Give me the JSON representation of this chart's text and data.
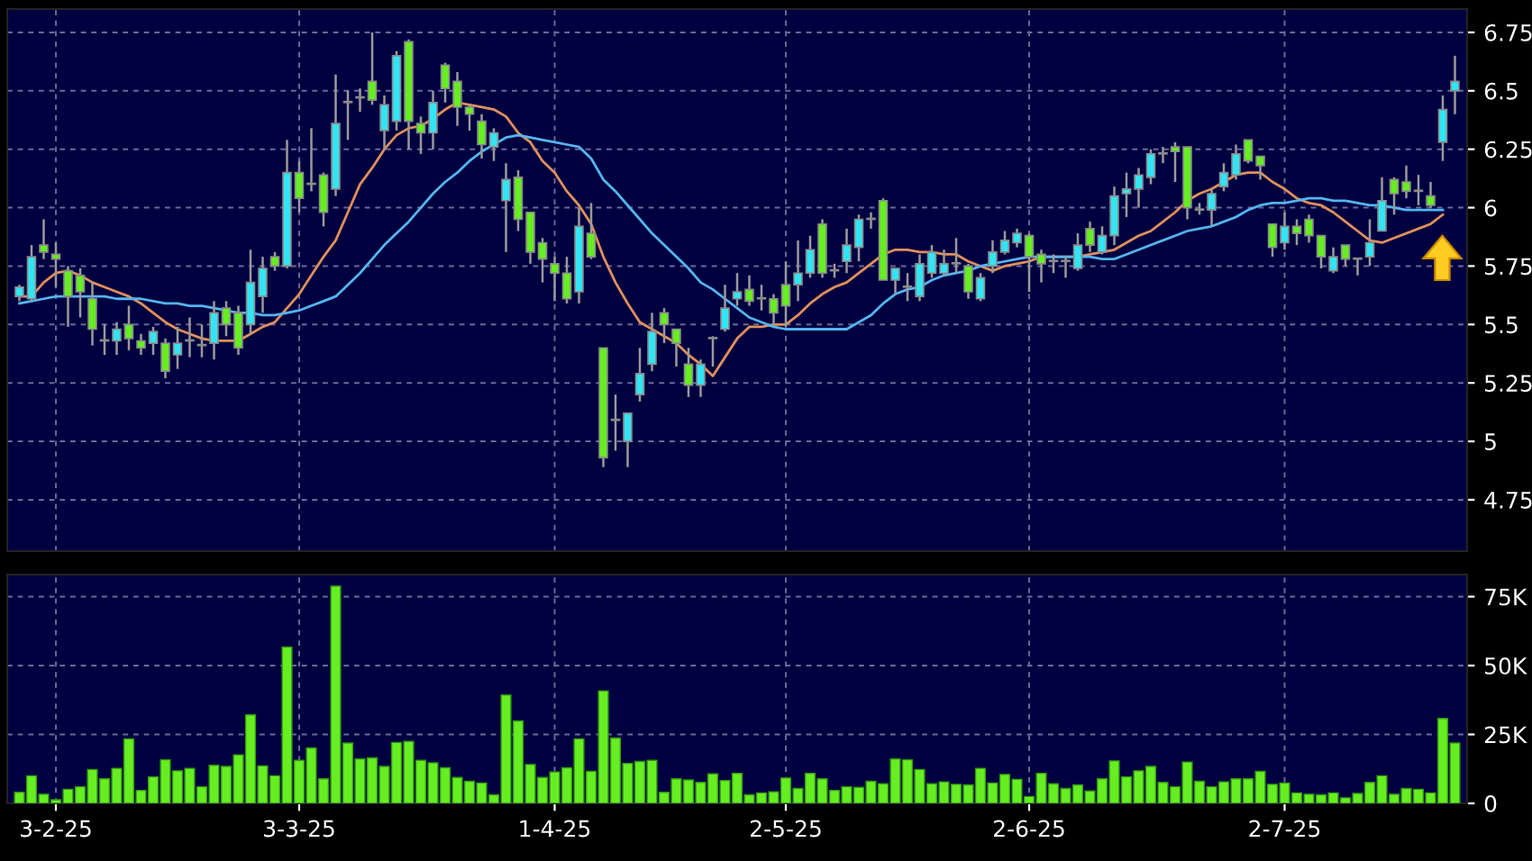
{
  "chart_data": [
    {
      "type": "candlestick",
      "ohlc": [
        [
          5.62,
          5.67,
          5.6,
          5.66
        ],
        [
          5.61,
          5.84,
          5.6,
          5.79
        ],
        [
          5.84,
          5.95,
          5.78,
          5.81
        ],
        [
          5.8,
          5.85,
          5.66,
          5.78
        ],
        [
          5.73,
          5.75,
          5.49,
          5.62
        ],
        [
          5.71,
          5.74,
          5.53,
          5.64
        ],
        [
          5.61,
          5.68,
          5.41,
          5.48
        ],
        [
          5.43,
          5.5,
          5.37,
          5.43
        ],
        [
          5.43,
          5.51,
          5.37,
          5.48
        ],
        [
          5.5,
          5.58,
          5.39,
          5.44
        ],
        [
          5.43,
          5.46,
          5.37,
          5.4
        ],
        [
          5.42,
          5.49,
          5.37,
          5.47
        ],
        [
          5.42,
          5.44,
          5.27,
          5.3
        ],
        [
          5.37,
          5.49,
          5.31,
          5.42
        ],
        [
          5.43,
          5.53,
          5.36,
          5.43
        ],
        [
          5.41,
          5.5,
          5.36,
          5.41
        ],
        [
          5.42,
          5.6,
          5.35,
          5.55
        ],
        [
          5.57,
          5.6,
          5.45,
          5.5
        ],
        [
          5.55,
          5.58,
          5.37,
          5.4
        ],
        [
          5.5,
          5.82,
          5.46,
          5.68
        ],
        [
          5.62,
          5.79,
          5.55,
          5.74
        ],
        [
          5.79,
          5.81,
          5.73,
          5.75
        ],
        [
          5.75,
          6.29,
          5.74,
          6.15
        ],
        [
          6.15,
          6.2,
          5.98,
          6.04
        ],
        [
          6.1,
          6.34,
          6.07,
          6.1
        ],
        [
          6.14,
          6.15,
          5.92,
          5.98
        ],
        [
          6.08,
          6.57,
          6.05,
          6.36
        ],
        [
          6.45,
          6.5,
          6.29,
          6.45
        ],
        [
          6.47,
          6.51,
          6.41,
          6.47
        ],
        [
          6.54,
          6.75,
          6.44,
          6.46
        ],
        [
          6.33,
          6.48,
          6.25,
          6.44
        ],
        [
          6.37,
          6.67,
          6.33,
          6.65
        ],
        [
          6.71,
          6.72,
          6.25,
          6.37
        ],
        [
          6.36,
          6.39,
          6.23,
          6.32
        ],
        [
          6.32,
          6.5,
          6.25,
          6.45
        ],
        [
          6.61,
          6.62,
          6.45,
          6.51
        ],
        [
          6.54,
          6.58,
          6.35,
          6.43
        ],
        [
          6.43,
          6.44,
          6.33,
          6.4
        ],
        [
          6.37,
          6.4,
          6.21,
          6.27
        ],
        [
          6.26,
          6.34,
          6.2,
          6.32
        ],
        [
          6.03,
          6.19,
          5.81,
          6.12
        ],
        [
          6.13,
          6.16,
          5.9,
          5.95
        ],
        [
          5.98,
          5.98,
          5.76,
          5.81
        ],
        [
          5.85,
          5.87,
          5.68,
          5.78
        ],
        [
          5.76,
          5.79,
          5.6,
          5.72
        ],
        [
          5.72,
          5.79,
          5.59,
          5.61
        ],
        [
          5.64,
          6.0,
          5.59,
          5.92
        ],
        [
          5.89,
          6.02,
          5.78,
          5.79
        ],
        [
          5.4,
          5.4,
          4.89,
          4.93
        ],
        [
          5.09,
          5.2,
          4.96,
          5.09
        ],
        [
          5.0,
          5.12,
          4.89,
          5.12
        ],
        [
          5.2,
          5.4,
          5.17,
          5.29
        ],
        [
          5.33,
          5.55,
          5.3,
          5.47
        ],
        [
          5.55,
          5.57,
          5.42,
          5.5
        ],
        [
          5.48,
          5.48,
          5.32,
          5.42
        ],
        [
          5.33,
          5.4,
          5.19,
          5.24
        ],
        [
          5.24,
          5.35,
          5.19,
          5.33
        ],
        [
          5.44,
          5.45,
          5.32,
          5.44
        ],
        [
          5.48,
          5.67,
          5.47,
          5.57
        ],
        [
          5.61,
          5.72,
          5.58,
          5.64
        ],
        [
          5.65,
          5.71,
          5.58,
          5.6
        ],
        [
          5.61,
          5.67,
          5.56,
          5.61
        ],
        [
          5.61,
          5.63,
          5.5,
          5.55
        ],
        [
          5.67,
          5.77,
          5.49,
          5.58
        ],
        [
          5.67,
          5.86,
          5.6,
          5.72
        ],
        [
          5.72,
          5.88,
          5.7,
          5.82
        ],
        [
          5.93,
          5.95,
          5.7,
          5.72
        ],
        [
          5.73,
          5.76,
          5.7,
          5.73
        ],
        [
          5.77,
          5.91,
          5.72,
          5.84
        ],
        [
          5.83,
          5.97,
          5.77,
          5.95
        ],
        [
          5.95,
          5.98,
          5.91,
          5.95
        ],
        [
          6.03,
          6.04,
          5.69,
          5.69
        ],
        [
          5.69,
          5.74,
          5.63,
          5.74
        ],
        [
          5.66,
          5.72,
          5.6,
          5.66
        ],
        [
          5.62,
          5.8,
          5.6,
          5.76
        ],
        [
          5.72,
          5.84,
          5.7,
          5.81
        ],
        [
          5.72,
          5.82,
          5.71,
          5.76
        ],
        [
          5.76,
          5.87,
          5.72,
          5.76
        ],
        [
          5.75,
          5.76,
          5.61,
          5.64
        ],
        [
          5.61,
          5.72,
          5.6,
          5.7
        ],
        [
          5.75,
          5.86,
          5.72,
          5.81
        ],
        [
          5.81,
          5.9,
          5.8,
          5.86
        ],
        [
          5.85,
          5.91,
          5.83,
          5.89
        ],
        [
          5.88,
          5.89,
          5.64,
          5.79
        ],
        [
          5.8,
          5.82,
          5.68,
          5.76
        ],
        [
          5.77,
          5.8,
          5.72,
          5.77
        ],
        [
          5.77,
          5.79,
          5.7,
          5.77
        ],
        [
          5.74,
          5.89,
          5.73,
          5.84
        ],
        [
          5.91,
          5.94,
          5.81,
          5.84
        ],
        [
          5.81,
          5.92,
          5.8,
          5.88
        ],
        [
          5.88,
          6.09,
          5.84,
          6.05
        ],
        [
          6.06,
          6.15,
          5.96,
          6.08
        ],
        [
          6.08,
          6.17,
          6.0,
          6.14
        ],
        [
          6.13,
          6.25,
          6.1,
          6.23
        ],
        [
          6.23,
          6.26,
          6.19,
          6.23
        ],
        [
          6.26,
          6.28,
          6.11,
          6.24
        ],
        [
          6.26,
          6.26,
          5.95,
          6.0
        ],
        [
          5.99,
          6.02,
          5.97,
          5.99
        ],
        [
          5.99,
          6.08,
          5.92,
          6.06
        ],
        [
          6.09,
          6.19,
          6.07,
          6.15
        ],
        [
          6.14,
          6.27,
          6.12,
          6.23
        ],
        [
          6.29,
          6.29,
          6.19,
          6.2
        ],
        [
          6.22,
          6.22,
          6.12,
          6.18
        ],
        [
          5.93,
          5.93,
          5.79,
          5.83
        ],
        [
          5.85,
          5.98,
          5.82,
          5.92
        ],
        [
          5.92,
          5.95,
          5.84,
          5.89
        ],
        [
          5.95,
          5.97,
          5.85,
          5.88
        ],
        [
          5.88,
          5.88,
          5.74,
          5.79
        ],
        [
          5.73,
          5.83,
          5.72,
          5.79
        ],
        [
          5.84,
          5.84,
          5.75,
          5.78
        ],
        [
          5.78,
          5.78,
          5.71,
          5.78
        ],
        [
          5.79,
          5.95,
          5.75,
          5.85
        ],
        [
          5.9,
          6.13,
          5.9,
          6.03
        ],
        [
          6.12,
          6.13,
          5.97,
          6.06
        ],
        [
          6.11,
          6.18,
          6.04,
          6.07
        ],
        [
          6.07,
          6.14,
          6.01,
          6.07
        ],
        [
          6.05,
          6.11,
          6.0,
          6.01
        ],
        [
          6.28,
          6.48,
          6.2,
          6.42
        ],
        [
          6.5,
          6.65,
          6.4,
          6.54
        ]
      ],
      "colors": [
        "#33e4f4",
        "#33e4f4",
        "#66ee22",
        "#66ee22",
        "#66ee22",
        "#66ee22",
        "#66ee22",
        "#aaaaaa",
        "#33e4f4",
        "#66ee22",
        "#66ee22",
        "#33e4f4",
        "#66ee22",
        "#33e4f4",
        "#aaaaaa",
        "#aaaaaa",
        "#33e4f4",
        "#66ee22",
        "#66ee22",
        "#33e4f4",
        "#33e4f4",
        "#66ee22",
        "#33e4f4",
        "#66ee22",
        "#aaaaaa",
        "#66ee22",
        "#33e4f4",
        "#aaaaaa",
        "#aaaaaa",
        "#66ee22",
        "#33e4f4",
        "#33e4f4",
        "#66ee22",
        "#66ee22",
        "#33e4f4",
        "#66ee22",
        "#66ee22",
        "#66ee22",
        "#66ee22",
        "#33e4f4",
        "#33e4f4",
        "#66ee22",
        "#66ee22",
        "#66ee22",
        "#66ee22",
        "#66ee22",
        "#33e4f4",
        "#66ee22",
        "#66ee22",
        "#aaaaaa",
        "#33e4f4",
        "#33e4f4",
        "#33e4f4",
        "#66ee22",
        "#66ee22",
        "#66ee22",
        "#33e4f4",
        "#aaaaaa",
        "#33e4f4",
        "#33e4f4",
        "#66ee22",
        "#aaaaaa",
        "#66ee22",
        "#66ee22",
        "#33e4f4",
        "#33e4f4",
        "#66ee22",
        "#aaaaaa",
        "#33e4f4",
        "#33e4f4",
        "#aaaaaa",
        "#66ee22",
        "#33e4f4",
        "#aaaaaa",
        "#33e4f4",
        "#33e4f4",
        "#33e4f4",
        "#aaaaaa",
        "#66ee22",
        "#33e4f4",
        "#33e4f4",
        "#33e4f4",
        "#33e4f4",
        "#66ee22",
        "#66ee22",
        "#aaaaaa",
        "#aaaaaa",
        "#33e4f4",
        "#66ee22",
        "#33e4f4",
        "#33e4f4",
        "#33e4f4",
        "#33e4f4",
        "#33e4f4",
        "#aaaaaa",
        "#66ee22",
        "#66ee22",
        "#aaaaaa",
        "#33e4f4",
        "#33e4f4",
        "#33e4f4",
        "#66ee22",
        "#66ee22",
        "#66ee22",
        "#33e4f4",
        "#66ee22",
        "#66ee22",
        "#66ee22",
        "#33e4f4",
        "#66ee22",
        "#aaaaaa",
        "#33e4f4",
        "#33e4f4",
        "#66ee22",
        "#66ee22",
        "#aaaaaa",
        "#66ee22",
        "#33e4f4",
        "#33e4f4"
      ],
      "series": [
        {
          "type": "line",
          "color": "#e0905a",
          "values": [
            5.62,
            5.62,
            5.68,
            5.72,
            5.73,
            5.71,
            5.68,
            5.66,
            5.64,
            5.62,
            5.59,
            5.55,
            5.51,
            5.48,
            5.46,
            5.44,
            5.43,
            5.43,
            5.43,
            5.46,
            5.49,
            5.51,
            5.57,
            5.63,
            5.71,
            5.79,
            5.86,
            5.98,
            6.1,
            6.17,
            6.25,
            6.31,
            6.34,
            6.35,
            6.38,
            6.42,
            6.45,
            6.44,
            6.43,
            6.42,
            6.39,
            6.32,
            6.28,
            6.2,
            6.15,
            6.07,
            6.01,
            5.93,
            5.79,
            5.68,
            5.59,
            5.51,
            5.48,
            5.45,
            5.42,
            5.37,
            5.33,
            5.28,
            5.36,
            5.44,
            5.49,
            5.49,
            5.5,
            5.5,
            5.54,
            5.59,
            5.63,
            5.66,
            5.68,
            5.72,
            5.76,
            5.8,
            5.82,
            5.82,
            5.81,
            5.81,
            5.8,
            5.8,
            5.77,
            5.75,
            5.73,
            5.75,
            5.76,
            5.77,
            5.79,
            5.79,
            5.79,
            5.79,
            5.8,
            5.81,
            5.82,
            5.85,
            5.88,
            5.9,
            5.94,
            5.98,
            6.03,
            6.06,
            6.08,
            6.11,
            6.14,
            6.15,
            6.15,
            6.11,
            6.08,
            6.04,
            6.02,
            6.01,
            5.98,
            5.94,
            5.9,
            5.86,
            5.85,
            5.87,
            5.89,
            5.91,
            5.93,
            5.97,
            null
          ]
        },
        {
          "type": "line",
          "color": "#55b4f0",
          "values": [
            5.59,
            5.6,
            5.61,
            5.62,
            5.62,
            5.62,
            5.62,
            5.62,
            5.61,
            5.61,
            5.61,
            5.6,
            5.59,
            5.59,
            5.58,
            5.58,
            5.57,
            5.56,
            5.55,
            5.55,
            5.54,
            5.54,
            5.55,
            5.56,
            5.58,
            5.6,
            5.62,
            5.67,
            5.72,
            5.78,
            5.84,
            5.89,
            5.94,
            6.0,
            6.06,
            6.11,
            6.15,
            6.2,
            6.24,
            6.27,
            6.3,
            6.31,
            6.3,
            6.29,
            6.28,
            6.27,
            6.26,
            6.21,
            6.12,
            6.07,
            6.01,
            5.95,
            5.89,
            5.84,
            5.79,
            5.74,
            5.68,
            5.65,
            5.61,
            5.57,
            5.53,
            5.51,
            5.49,
            5.48,
            5.48,
            5.48,
            5.48,
            5.48,
            5.48,
            5.51,
            5.54,
            5.59,
            5.63,
            5.65,
            5.66,
            5.69,
            5.71,
            5.72,
            5.73,
            5.75,
            5.76,
            5.77,
            5.78,
            5.79,
            5.79,
            5.79,
            5.79,
            5.79,
            5.79,
            5.78,
            5.78,
            5.8,
            5.82,
            5.84,
            5.86,
            5.88,
            5.9,
            5.91,
            5.92,
            5.94,
            5.96,
            5.99,
            6.01,
            6.02,
            6.02,
            6.03,
            6.04,
            6.04,
            6.03,
            6.03,
            6.02,
            6.01,
            6.01,
            6.0,
            5.99,
            5.99,
            5.99,
            5.99,
            null
          ]
        }
      ],
      "ylim": [
        4.53,
        6.85
      ],
      "yticks": [
        4.75,
        5,
        5.25,
        5.5,
        5.75,
        6,
        6.25,
        6.5,
        6.75
      ],
      "grid": true,
      "tick_labels": "y"
    },
    {
      "type": "bar",
      "categories": [
        null,
        null,
        null,
        "3-2-25",
        null,
        null,
        null,
        null,
        null,
        null,
        null,
        null,
        null,
        null,
        null,
        null,
        null,
        null,
        null,
        null,
        null,
        null,
        null,
        "3-3-25",
        null,
        null,
        null,
        null,
        null,
        null,
        null,
        null,
        null,
        null,
        null,
        null,
        null,
        null,
        null,
        null,
        null,
        null,
        null,
        null,
        "1-4-25",
        null,
        null,
        null,
        null,
        null,
        null,
        null,
        null,
        null,
        null,
        null,
        null,
        null,
        null,
        null,
        null,
        null,
        null,
        "2-5-25",
        null,
        null,
        null,
        null,
        null,
        null,
        null,
        null,
        null,
        null,
        null,
        null,
        null,
        null,
        null,
        null,
        null,
        null,
        null,
        "2-6-25",
        null,
        null,
        null,
        null,
        null,
        null,
        null,
        null,
        null,
        null,
        null,
        null,
        null,
        null,
        null,
        null,
        null,
        null,
        null,
        null,
        "2-7-25",
        null,
        null,
        null,
        null,
        null,
        null,
        null,
        null,
        null,
        null,
        null,
        null,
        null,
        null
      ],
      "color": "#66ee22",
      "values": [
        4000,
        10000,
        3300,
        1300,
        5100,
        6000,
        12300,
        8900,
        12700,
        23400,
        4700,
        9600,
        15800,
        11800,
        12700,
        6000,
        13800,
        13400,
        17600,
        32100,
        13600,
        10000,
        56700,
        15600,
        20100,
        8900,
        78800,
        21900,
        16100,
        16500,
        13400,
        22100,
        22500,
        15600,
        14700,
        12900,
        9400,
        8000,
        7400,
        3100,
        39300,
        29900,
        14100,
        9400,
        11400,
        12900,
        23400,
        11600,
        40800,
        23700,
        14500,
        15200,
        15600,
        4000,
        8900,
        8500,
        7600,
        10700,
        8300,
        10900,
        3100,
        3800,
        4200,
        9200,
        5400,
        10900,
        8900,
        4700,
        6000,
        5800,
        8000,
        7100,
        16100,
        15800,
        12300,
        7100,
        7800,
        6900,
        6700,
        12700,
        7400,
        10500,
        8700,
        2500,
        10900,
        7100,
        5400,
        6700,
        4500,
        8900,
        15400,
        9600,
        11800,
        13400,
        7600,
        6000,
        15000,
        8000,
        6000,
        7800,
        8900,
        8900,
        11600,
        6900,
        7400,
        3800,
        3300,
        3100,
        3800,
        2000,
        3600,
        7600,
        10000,
        3300,
        5400,
        5100,
        3800,
        30800,
        21900
      ],
      "ylim": [
        0,
        83000
      ],
      "yticks": [
        0,
        {
          "value": 25000,
          "label": "25K"
        },
        {
          "value": 50000,
          "label": "50K"
        },
        {
          "value": 75000,
          "label": "75K"
        }
      ],
      "grid": true
    }
  ]
}
